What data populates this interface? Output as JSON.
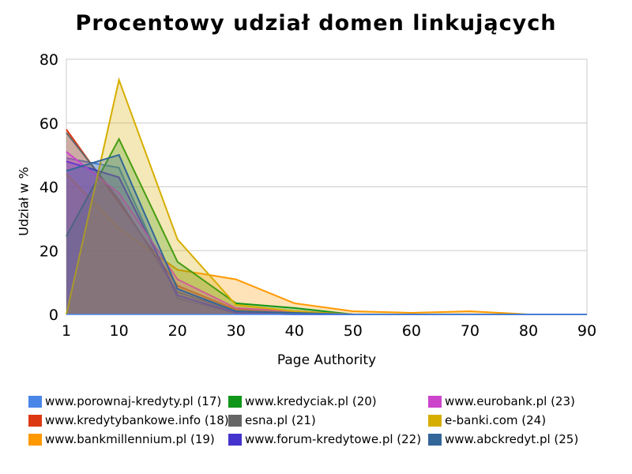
{
  "chart_data": {
    "type": "area",
    "title": "Procentowy udział domen linkujących",
    "xlabel": "Page Authority",
    "ylabel": "Udział w %",
    "x": [
      1,
      10,
      20,
      30,
      40,
      50,
      60,
      70,
      80,
      90
    ],
    "x_ticks": [
      "1",
      "10",
      "20",
      "30",
      "40",
      "50",
      "60",
      "70",
      "80",
      "90"
    ],
    "y_ticks": [
      "0",
      "20",
      "40",
      "60",
      "80"
    ],
    "xlim": [
      1,
      90
    ],
    "ylim": [
      0,
      80
    ],
    "grid": true,
    "legend_position": "bottom",
    "series": [
      {
        "name": "www.porownaj-kredyty.pl (17)",
        "color": "#4a86e8",
        "values": [
          49,
          46,
          5,
          0.5,
          0,
          0,
          0,
          0,
          0,
          0
        ]
      },
      {
        "name": "www.kredytybankowe.info (18)",
        "color": "#dc3912",
        "values": [
          58,
          35,
          9,
          1.5,
          1,
          0,
          0,
          0,
          0,
          0
        ]
      },
      {
        "name": "www.bankmillennium.pl (19)",
        "color": "#ff9900",
        "values": [
          44,
          27,
          14,
          11,
          3.5,
          1,
          0.5,
          1,
          0,
          0
        ]
      },
      {
        "name": "www.kredyciak.pl (20)",
        "color": "#109618",
        "values": [
          24.5,
          55,
          16.5,
          3.5,
          2,
          0,
          0,
          0,
          0,
          0
        ]
      },
      {
        "name": "esna.pl (21)",
        "color": "#666666",
        "values": [
          57,
          36,
          7,
          1,
          0,
          0,
          0,
          0,
          0,
          0
        ]
      },
      {
        "name": "www.forum-kredytowe.pl (22)",
        "color": "#4433cc",
        "values": [
          48,
          43,
          6,
          0.5,
          0,
          0,
          0,
          0,
          0,
          0
        ]
      },
      {
        "name": "www.eurobank.pl (23)",
        "color": "#cc44cc",
        "values": [
          51,
          38,
          11,
          2,
          1,
          0,
          0,
          0,
          0,
          0
        ]
      },
      {
        "name": "e-banki.com (24)",
        "color": "#d6ae00",
        "values": [
          0,
          73.5,
          23.5,
          3,
          1,
          0,
          0,
          0,
          0,
          0
        ]
      },
      {
        "name": "www.abckredyt.pl (25)",
        "color": "#336699",
        "values": [
          45,
          50,
          8,
          1,
          0.5,
          0,
          0,
          0,
          0,
          0
        ]
      }
    ]
  }
}
